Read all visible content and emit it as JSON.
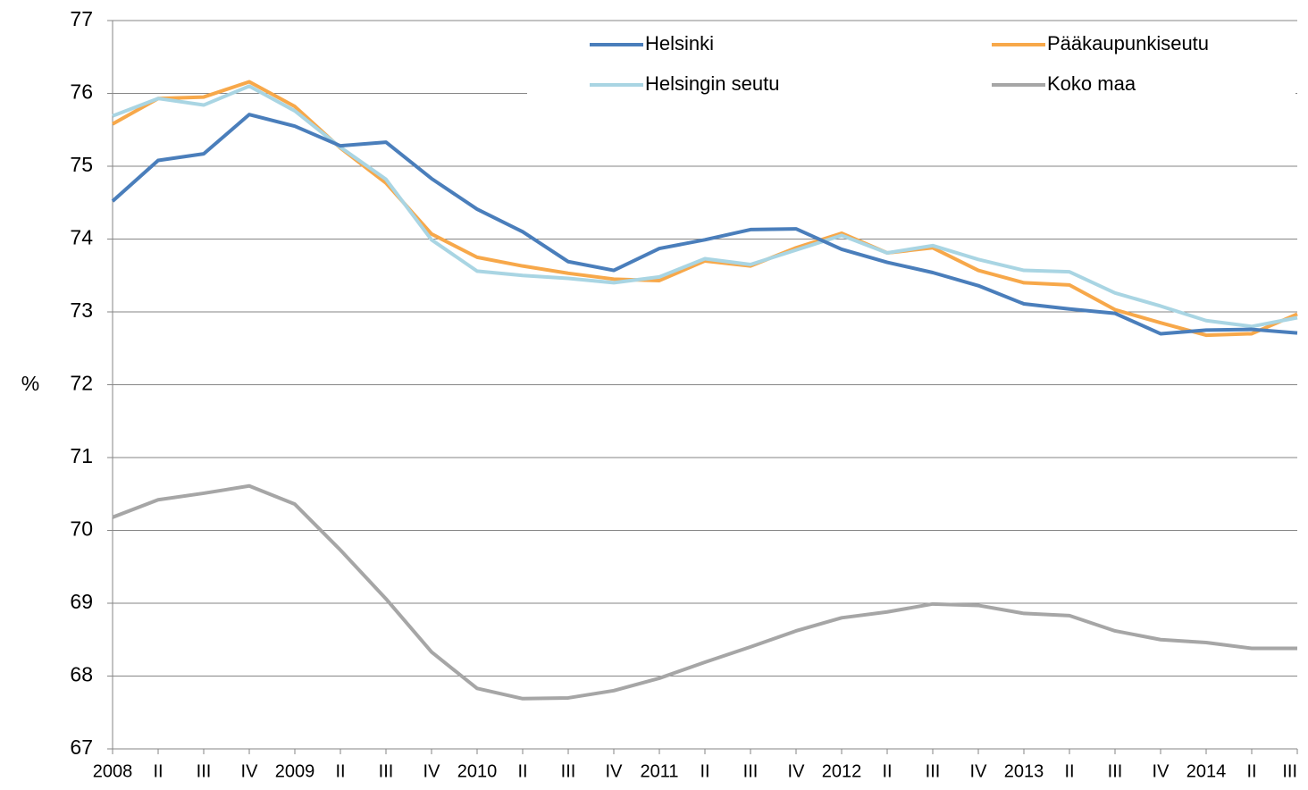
{
  "chart_data": {
    "type": "line",
    "y_label": "%",
    "categories": [
      "2008",
      "II",
      "III",
      "IV",
      "2009",
      "II",
      "III",
      "IV",
      "2010",
      "II",
      "III",
      "IV",
      "2011",
      "II",
      "III",
      "IV",
      "2012",
      "II",
      "III",
      "IV",
      "2013",
      "II",
      "III",
      "IV",
      "2014",
      "II",
      "III"
    ],
    "series": [
      {
        "name": "Helsinki",
        "color": "#4a7ebb",
        "values": [
          74.52,
          75.08,
          75.17,
          75.71,
          75.55,
          75.28,
          75.33,
          74.83,
          74.41,
          74.1,
          73.69,
          73.57,
          73.87,
          73.99,
          74.13,
          74.14,
          73.86,
          73.68,
          73.54,
          73.36,
          73.11,
          73.04,
          72.98,
          72.7,
          72.75,
          72.76,
          72.71
        ]
      },
      {
        "name": "Pääkaupunkiseutu",
        "color": "#f7a84a",
        "values": [
          75.58,
          75.93,
          75.95,
          76.16,
          75.82,
          75.25,
          74.77,
          74.07,
          73.75,
          73.63,
          73.53,
          73.45,
          73.43,
          73.7,
          73.63,
          73.88,
          74.08,
          73.81,
          73.88,
          73.57,
          73.4,
          73.37,
          73.03,
          72.85,
          72.68,
          72.7,
          72.97
        ]
      },
      {
        "name": "Helsingin seutu",
        "color": "#a9d5e3",
        "values": [
          75.69,
          75.93,
          75.84,
          76.1,
          75.76,
          75.26,
          74.82,
          73.99,
          73.56,
          73.5,
          73.46,
          73.4,
          73.48,
          73.73,
          73.65,
          73.85,
          74.05,
          73.81,
          73.91,
          73.72,
          73.57,
          73.55,
          73.26,
          73.08,
          72.88,
          72.8,
          72.92
        ]
      },
      {
        "name": "Koko maa",
        "color": "#a6a6a6",
        "values": [
          70.18,
          70.42,
          70.51,
          70.61,
          70.36,
          69.73,
          69.06,
          68.33,
          67.83,
          67.69,
          67.7,
          67.8,
          67.97,
          68.19,
          68.4,
          68.62,
          68.8,
          68.88,
          68.99,
          68.97,
          68.86,
          68.83,
          68.62,
          68.5,
          68.46,
          68.38,
          68.38
        ]
      }
    ],
    "ylim": [
      67,
      77
    ],
    "yticks": [
      67,
      68,
      69,
      70,
      71,
      72,
      73,
      74,
      75,
      76,
      77
    ],
    "grid": true
  }
}
